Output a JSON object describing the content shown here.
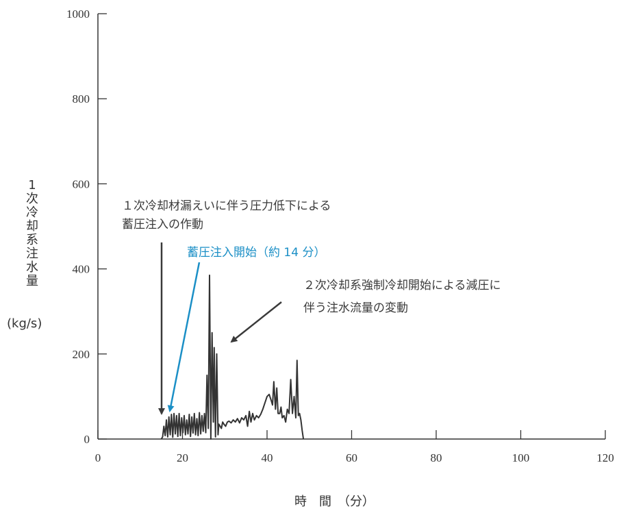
{
  "chart_data": {
    "type": "line",
    "title": "",
    "xlabel": "時　間　（分）",
    "ylabel_chars": [
      "1",
      "次",
      "冷",
      "却",
      "系",
      "注",
      "水",
      "量"
    ],
    "yunit": "(kg/s)",
    "xlim": [
      0,
      120
    ],
    "ylim": [
      0,
      1000
    ],
    "xticks": [
      0,
      20,
      40,
      60,
      80,
      100,
      120
    ],
    "yticks": [
      0,
      200,
      400,
      600,
      800,
      1000
    ],
    "grid": false,
    "series": [
      {
        "color": "#333333",
        "x": [
          15.0,
          15.3,
          15.6,
          15.9,
          16.2,
          16.5,
          16.8,
          17.1,
          17.4,
          17.7,
          18.0,
          18.3,
          18.6,
          18.9,
          19.2,
          19.5,
          19.8,
          20.1,
          20.4,
          20.7,
          21.0,
          21.3,
          21.6,
          21.9,
          22.2,
          22.5,
          22.8,
          23.1,
          23.4,
          23.7,
          24.0,
          24.3,
          24.6,
          24.9,
          25.2,
          25.5,
          25.8,
          26.1,
          26.4,
          26.7,
          27.0,
          27.3,
          27.5,
          27.8,
          28.1,
          28.4,
          28.6,
          28.9,
          29.2,
          29.5,
          29.8,
          30.2,
          30.6,
          31.0,
          31.5,
          32.0,
          32.5,
          33.0,
          33.5,
          34.0,
          34.5,
          35.0,
          35.4,
          35.8,
          36.2,
          36.6,
          37.0,
          37.5,
          38.0,
          38.5,
          39.0,
          39.5,
          40.0,
          40.5,
          41.0,
          41.3,
          41.6,
          42.0,
          42.3,
          42.6,
          43.0,
          43.3,
          43.6,
          44.0,
          44.4,
          44.8,
          45.2,
          45.6,
          46.0,
          46.4,
          46.8,
          47.1,
          47.4,
          47.7,
          48.0,
          48.3,
          48.6
        ],
        "y": [
          0,
          5,
          30,
          8,
          45,
          5,
          52,
          10,
          58,
          4,
          60,
          12,
          55,
          6,
          60,
          8,
          50,
          15,
          55,
          10,
          45,
          12,
          58,
          6,
          52,
          14,
          60,
          10,
          48,
          8,
          62,
          12,
          55,
          18,
          60,
          15,
          150,
          25,
          385,
          0,
          250,
          40,
          215,
          5,
          200,
          10,
          35,
          30,
          25,
          40,
          35,
          30,
          40,
          42,
          38,
          45,
          40,
          48,
          38,
          50,
          45,
          55,
          30,
          65,
          40,
          60,
          45,
          55,
          50,
          58,
          70,
          85,
          100,
          105,
          90,
          80,
          135,
          70,
          120,
          60,
          60,
          75,
          50,
          55,
          40,
          70,
          60,
          140,
          60,
          100,
          50,
          185,
          55,
          60,
          45,
          20,
          0
        ]
      }
    ],
    "annotations": {
      "black_label_line1": "１次冷却材漏えいに伴う圧力低下による",
      "black_label_line2": "蓄圧注入の作動",
      "blue_label": "蓄圧注入開始（約 14 分）",
      "right_label_line1": "２次冷却系強制冷却開始による減圧に",
      "right_label_line2": "伴う注水流量の変動"
    }
  }
}
